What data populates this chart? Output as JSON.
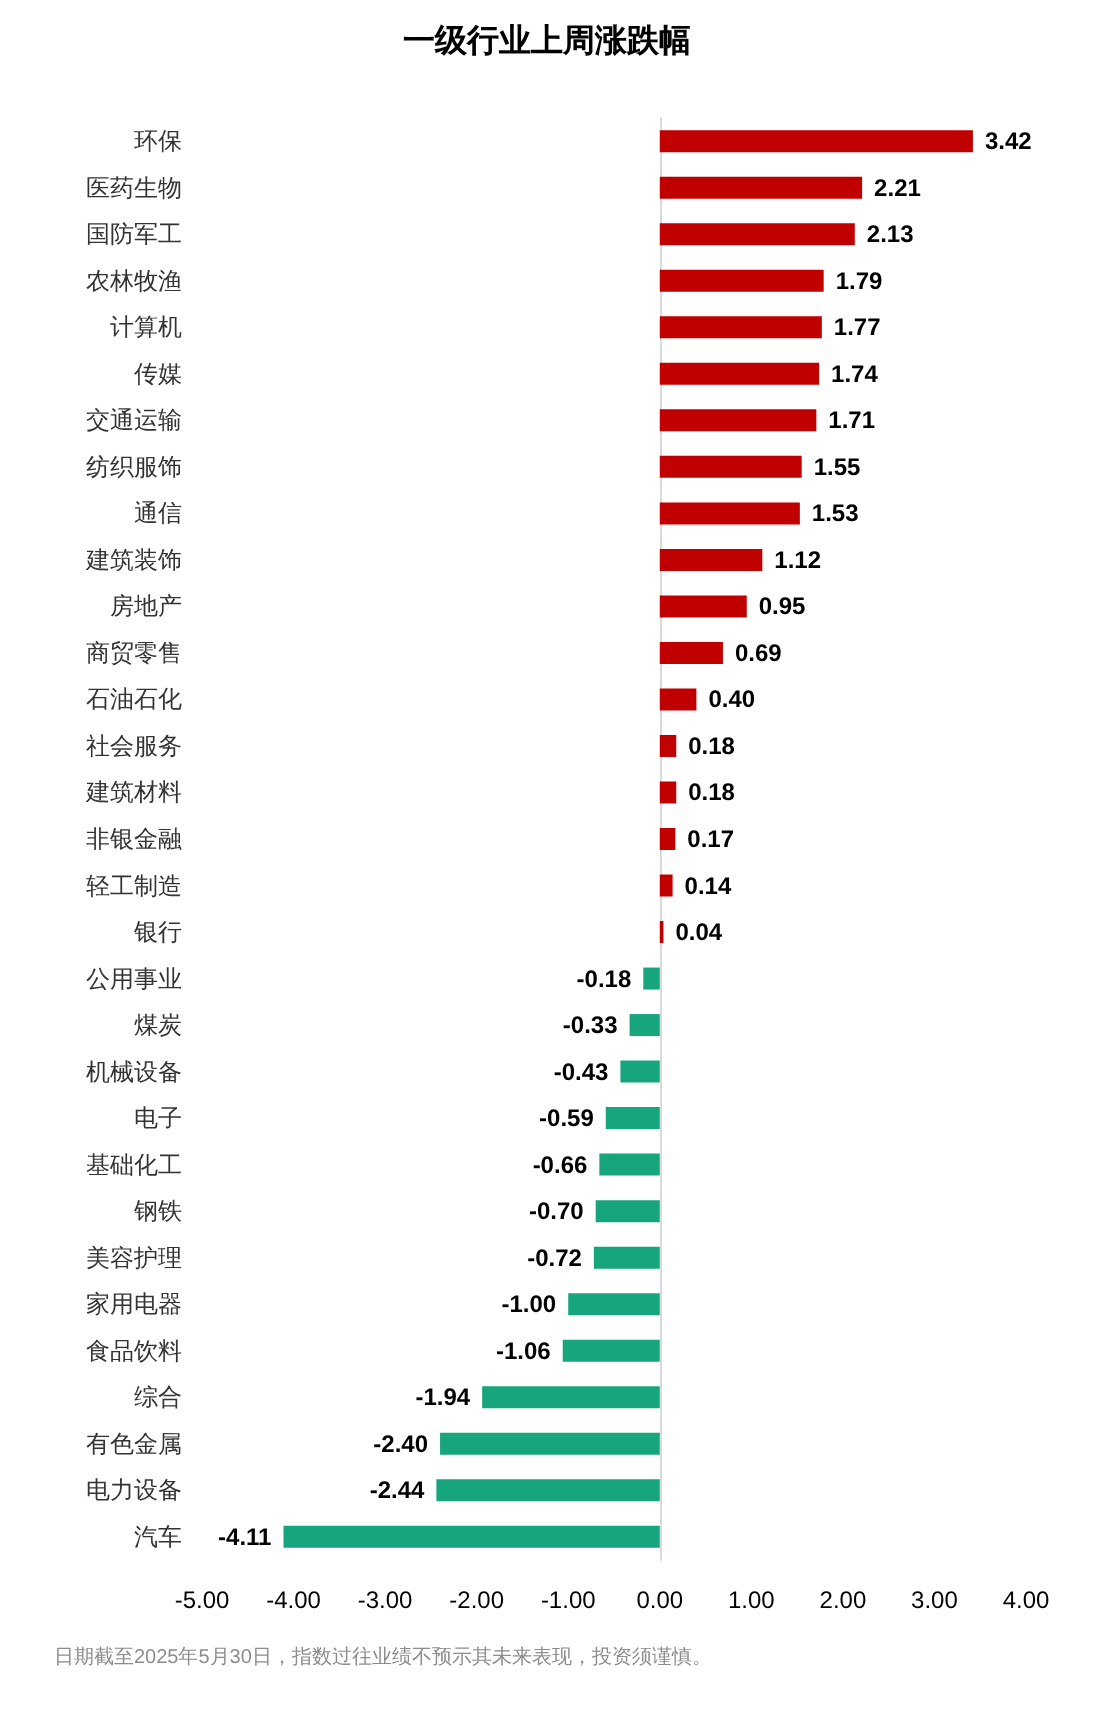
{
  "chart_data": {
    "type": "bar",
    "orientation": "horizontal",
    "title": "一级行业上周涨跌幅",
    "categories": [
      "环保",
      "医药生物",
      "国防军工",
      "农林牧渔",
      "计算机",
      "传媒",
      "交通运输",
      "纺织服饰",
      "通信",
      "建筑装饰",
      "房地产",
      "商贸零售",
      "石油石化",
      "社会服务",
      "建筑材料",
      "非银金融",
      "轻工制造",
      "银行",
      "公用事业",
      "煤炭",
      "机械设备",
      "电子",
      "基础化工",
      "钢铁",
      "美容护理",
      "家用电器",
      "食品饮料",
      "综合",
      "有色金属",
      "电力设备",
      "汽车"
    ],
    "values": [
      3.42,
      2.21,
      2.13,
      1.79,
      1.77,
      1.74,
      1.71,
      1.55,
      1.53,
      1.12,
      0.95,
      0.69,
      0.4,
      0.18,
      0.18,
      0.17,
      0.14,
      0.04,
      -0.18,
      -0.33,
      -0.43,
      -0.59,
      -0.66,
      -0.7,
      -0.72,
      -1.0,
      -1.06,
      -1.94,
      -2.4,
      -2.44,
      -4.11
    ],
    "colors": [
      "#c00000",
      "#c00000",
      "#c00000",
      "#c00000",
      "#c00000",
      "#c00000",
      "#c00000",
      "#c00000",
      "#c00000",
      "#c00000",
      "#c00000",
      "#c00000",
      "#c00000",
      "#c00000",
      "#c00000",
      "#c00000",
      "#c00000",
      "#c00000",
      "#17a57e",
      "#17a57e",
      "#17a57e",
      "#17a57e",
      "#17a57e",
      "#17a57e",
      "#17a57e",
      "#17a57e",
      "#17a57e",
      "#17a57e",
      "#17a57e",
      "#17a57e",
      "#17a57e"
    ],
    "value_labels": [
      "3.42",
      "2.21",
      "2.13",
      "1.79",
      "1.77",
      "1.74",
      "1.71",
      "1.55",
      "1.53",
      "1.12",
      "0.95",
      "0.69",
      "0.40",
      "0.18",
      "0.18",
      "0.17",
      "0.14",
      "0.04",
      "-0.18",
      "-0.33",
      "-0.43",
      "-0.59",
      "-0.66",
      "-0.70",
      "-0.72",
      "-1.00",
      "-1.06",
      "-1.94",
      "-2.40",
      "-2.44",
      "-4.11"
    ],
    "xlim": [
      -5,
      4
    ],
    "xticks": [
      {
        "value": -5,
        "label": "-5.00"
      },
      {
        "value": -4,
        "label": "-4.00"
      },
      {
        "value": -3,
        "label": "-3.00"
      },
      {
        "value": -2,
        "label": "-2.00"
      },
      {
        "value": -1,
        "label": "-1.00"
      },
      {
        "value": 0,
        "label": "0.00"
      },
      {
        "value": 1,
        "label": "1.00"
      },
      {
        "value": 2,
        "label": "2.00"
      },
      {
        "value": 3,
        "label": "3.00"
      },
      {
        "value": 4,
        "label": "4.00"
      }
    ],
    "annotations": [
      "日期截至2025年5月30日，指数过往业绩不预示其未来表现，投资须谨慎。"
    ]
  }
}
